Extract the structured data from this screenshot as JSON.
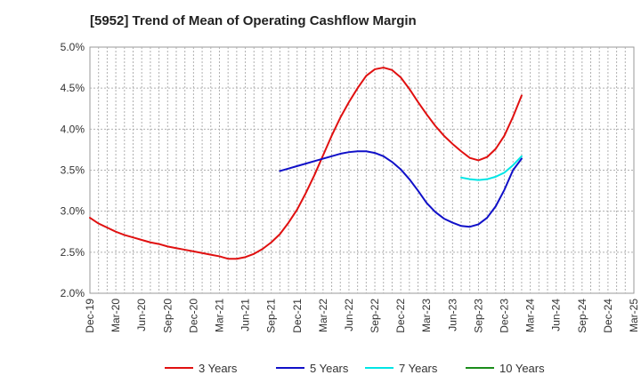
{
  "chart_data": {
    "type": "line",
    "title": "[5952]  Trend of Mean of Operating Cashflow Margin",
    "xlabel": "",
    "ylabel": "",
    "x_ticks": [
      "Dec-19",
      "Mar-20",
      "Jun-20",
      "Sep-20",
      "Dec-20",
      "Mar-21",
      "Jun-21",
      "Sep-21",
      "Dec-21",
      "Mar-22",
      "Jun-22",
      "Sep-22",
      "Dec-22",
      "Mar-23",
      "Jun-23",
      "Sep-23",
      "Dec-23",
      "Mar-24",
      "Jun-24",
      "Sep-24",
      "Dec-24",
      "Mar-25"
    ],
    "y_ticks": [
      "2.0%",
      "2.5%",
      "3.0%",
      "3.5%",
      "4.0%",
      "4.5%",
      "5.0%"
    ],
    "ylim": [
      2.0,
      5.0
    ],
    "grid": true,
    "legend_position": "bottom",
    "series": [
      {
        "name": "3 Years",
        "color": "#e01010",
        "points": [
          [
            "Dec-19",
            2.92
          ],
          [
            "Jan-20",
            2.85
          ],
          [
            "Feb-20",
            2.8
          ],
          [
            "Mar-20",
            2.75
          ],
          [
            "Apr-20",
            2.71
          ],
          [
            "May-20",
            2.68
          ],
          [
            "Jun-20",
            2.65
          ],
          [
            "Jul-20",
            2.62
          ],
          [
            "Aug-20",
            2.6
          ],
          [
            "Sep-20",
            2.57
          ],
          [
            "Oct-20",
            2.55
          ],
          [
            "Nov-20",
            2.53
          ],
          [
            "Dec-20",
            2.51
          ],
          [
            "Jan-21",
            2.49
          ],
          [
            "Feb-21",
            2.47
          ],
          [
            "Mar-21",
            2.45
          ],
          [
            "Apr-21",
            2.42
          ],
          [
            "May-21",
            2.42
          ],
          [
            "Jun-21",
            2.44
          ],
          [
            "Jul-21",
            2.48
          ],
          [
            "Aug-21",
            2.54
          ],
          [
            "Sep-21",
            2.62
          ],
          [
            "Oct-21",
            2.72
          ],
          [
            "Nov-21",
            2.86
          ],
          [
            "Dec-21",
            3.02
          ],
          [
            "Jan-22",
            3.22
          ],
          [
            "Feb-22",
            3.44
          ],
          [
            "Mar-22",
            3.68
          ],
          [
            "Apr-22",
            3.92
          ],
          [
            "May-22",
            4.14
          ],
          [
            "Jun-22",
            4.33
          ],
          [
            "Jul-22",
            4.5
          ],
          [
            "Aug-22",
            4.65
          ],
          [
            "Sep-22",
            4.73
          ],
          [
            "Oct-22",
            4.75
          ],
          [
            "Nov-22",
            4.72
          ],
          [
            "Dec-22",
            4.63
          ],
          [
            "Jan-23",
            4.49
          ],
          [
            "Feb-23",
            4.33
          ],
          [
            "Mar-23",
            4.18
          ],
          [
            "Apr-23",
            4.04
          ],
          [
            "May-23",
            3.92
          ],
          [
            "Jun-23",
            3.82
          ],
          [
            "Jul-23",
            3.73
          ],
          [
            "Aug-23",
            3.65
          ],
          [
            "Sep-23",
            3.62
          ],
          [
            "Oct-23",
            3.66
          ],
          [
            "Nov-23",
            3.76
          ],
          [
            "Dec-23",
            3.92
          ],
          [
            "Jan-24",
            4.15
          ],
          [
            "Feb-24",
            4.41
          ]
        ]
      },
      {
        "name": "5 Years",
        "color": "#1010c8",
        "points": [
          [
            "Oct-21",
            3.49
          ],
          [
            "Nov-21",
            3.52
          ],
          [
            "Dec-21",
            3.55
          ],
          [
            "Jan-22",
            3.58
          ],
          [
            "Feb-22",
            3.61
          ],
          [
            "Mar-22",
            3.64
          ],
          [
            "Apr-22",
            3.67
          ],
          [
            "May-22",
            3.7
          ],
          [
            "Jun-22",
            3.72
          ],
          [
            "Jul-22",
            3.73
          ],
          [
            "Aug-22",
            3.73
          ],
          [
            "Sep-22",
            3.71
          ],
          [
            "Oct-22",
            3.67
          ],
          [
            "Nov-22",
            3.6
          ],
          [
            "Dec-22",
            3.51
          ],
          [
            "Jan-23",
            3.39
          ],
          [
            "Feb-23",
            3.25
          ],
          [
            "Mar-23",
            3.1
          ],
          [
            "Apr-23",
            2.99
          ],
          [
            "May-23",
            2.91
          ],
          [
            "Jun-23",
            2.86
          ],
          [
            "Jul-23",
            2.82
          ],
          [
            "Aug-23",
            2.81
          ],
          [
            "Sep-23",
            2.84
          ],
          [
            "Oct-23",
            2.92
          ],
          [
            "Nov-23",
            3.06
          ],
          [
            "Dec-23",
            3.26
          ],
          [
            "Jan-24",
            3.5
          ],
          [
            "Feb-24",
            3.64
          ]
        ]
      },
      {
        "name": "7 Years",
        "color": "#00e5e5",
        "points": [
          [
            "Jul-23",
            3.41
          ],
          [
            "Aug-23",
            3.39
          ],
          [
            "Sep-23",
            3.38
          ],
          [
            "Oct-23",
            3.39
          ],
          [
            "Nov-23",
            3.42
          ],
          [
            "Dec-23",
            3.47
          ],
          [
            "Jan-24",
            3.56
          ],
          [
            "Feb-24",
            3.67
          ]
        ]
      },
      {
        "name": "10 Years",
        "color": "#1a8c1a",
        "points": []
      }
    ]
  }
}
